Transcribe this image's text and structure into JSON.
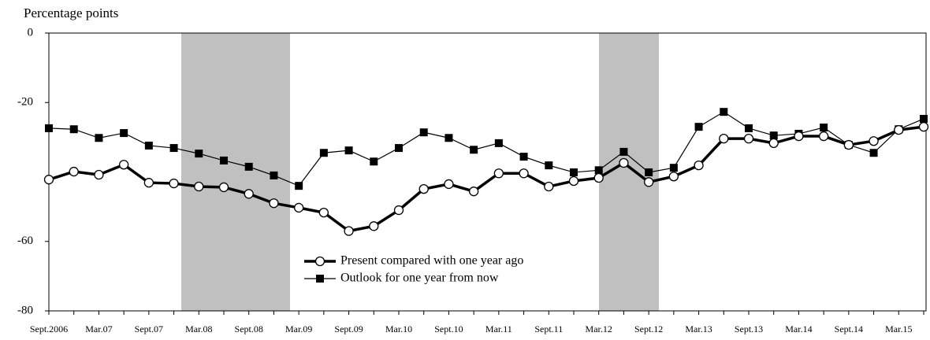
{
  "chart_data": {
    "type": "line",
    "y_label": "Percentage points",
    "categories": [
      "Sept.2006",
      null,
      "Mar.07",
      null,
      "Sept.07",
      null,
      "Mar.08",
      null,
      "Sept.08",
      null,
      "Mar.09",
      null,
      "Sept.09",
      null,
      "Mar.10",
      null,
      "Sept.10",
      null,
      "Mar.11",
      null,
      "Sept.11",
      null,
      "Mar.12",
      null,
      "Sept.12",
      null,
      "Mar.13",
      null,
      "Sept.13",
      null,
      "Mar.14",
      null,
      "Sept.14",
      null,
      "Mar.15",
      null
    ],
    "series": [
      {
        "name": "Present compared with one year ago",
        "color": "#000000",
        "marker": "circle",
        "values": [
          -42.2,
          -39.9,
          -40.8,
          -37.9,
          -43.1,
          -43.3,
          -44.2,
          -44.4,
          -46.3,
          -49.0,
          -50.3,
          -51.7,
          -57.0,
          -55.6,
          -51.0,
          -44.9,
          -43.5,
          -45.6,
          -40.4,
          -40.4,
          -44.2,
          -42.6,
          -41.7,
          -37.4,
          -42.9,
          -41.3,
          -38.1,
          -30.4,
          -30.4,
          -31.7,
          -29.7,
          -29.7,
          -32.2,
          -31.1,
          -27.9,
          -27.0
        ]
      },
      {
        "name": "Outlook for one year from now",
        "color": "#000000",
        "marker": "square",
        "values": [
          -27.4,
          -27.7,
          -30.2,
          -28.8,
          -32.4,
          -33.1,
          -34.7,
          -36.7,
          -38.5,
          -41.0,
          -44.0,
          -34.5,
          -33.8,
          -37.0,
          -33.1,
          -28.6,
          -30.2,
          -33.6,
          -31.7,
          -35.6,
          -38.1,
          -40.1,
          -39.5,
          -34.2,
          -40.1,
          -38.8,
          -27.0,
          -22.7,
          -27.4,
          -29.5,
          -29.0,
          -27.2,
          -32.2,
          -34.5,
          -27.7,
          -24.7
        ]
      }
    ],
    "ylim": [
      -80,
      0
    ],
    "yticks": [
      0,
      -20,
      -60,
      -80
    ]
  }
}
